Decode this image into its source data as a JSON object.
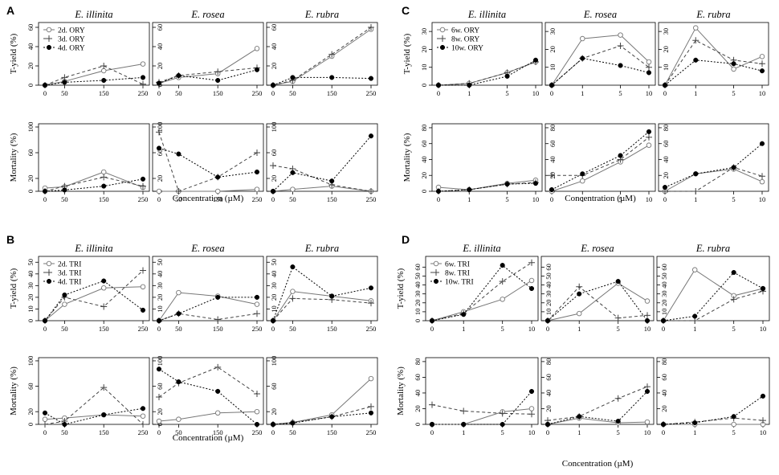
{
  "chart_data": [
    {
      "panel": "A",
      "treatment": "ORY",
      "type": "line",
      "xlabel": "Concentration (µM)",
      "x": [
        0,
        50,
        150,
        250
      ],
      "x_tick_labels": [
        "0",
        "50",
        "150",
        "250"
      ],
      "legend": [
        "2d. ORY",
        "3d. ORY",
        "4d. ORY"
      ],
      "species": [
        "E. illinita",
        "E. rosea",
        "E. rubra"
      ],
      "rows": [
        {
          "ylabel": "T-yield (%)",
          "ylim": [
            0,
            65
          ],
          "yticks": [
            0,
            20,
            40,
            60
          ],
          "data": [
            [
              [
                0,
                4,
                15,
                22
              ],
              [
                0,
                8,
                20,
                1
              ],
              [
                0,
                3,
                5,
                8
              ]
            ],
            [
              [
                2,
                8,
                12,
                38
              ],
              [
                3,
                10,
                14,
                18
              ],
              [
                2,
                10,
                5,
                16
              ]
            ],
            [
              [
                0,
                4,
                30,
                58
              ],
              [
                0,
                5,
                32,
                60
              ],
              [
                0,
                8,
                8,
                7
              ]
            ]
          ]
        },
        {
          "ylabel": "Mortality (%)",
          "ylim": [
            0,
            105
          ],
          "yticks": [
            0,
            20,
            60,
            100
          ],
          "data": [
            [
              [
                5,
                7,
                30,
                6
              ],
              [
                0,
                8,
                22,
                8
              ],
              [
                0,
                2,
                8,
                19
              ]
            ],
            [
              [
                0,
                0,
                0,
                3
              ],
              [
                92,
                0,
                22,
                60
              ],
              [
                67,
                58,
                22,
                30
              ]
            ],
            [
              [
                0,
                3,
                8,
                0
              ],
              [
                40,
                35,
                10,
                0
              ],
              [
                0,
                29,
                16,
                86
              ]
            ]
          ]
        }
      ]
    },
    {
      "panel": "B",
      "treatment": "TRI",
      "type": "line",
      "xlabel": "Concentration (µM)",
      "x": [
        0,
        50,
        150,
        250
      ],
      "x_tick_labels": [
        "0",
        "50",
        "150",
        "250"
      ],
      "legend": [
        "2d. TRI",
        "3d. TRI",
        "4d. TRI"
      ],
      "species": [
        "E. illinita",
        "E. rosea",
        "E. rubra"
      ],
      "rows": [
        {
          "ylabel": "T-yield (%)",
          "ylim": [
            0,
            55
          ],
          "yticks": [
            0,
            10,
            20,
            30,
            40,
            50
          ],
          "data": [
            [
              [
                0,
                14,
                28,
                29
              ],
              [
                0,
                20,
                12,
                43
              ],
              [
                0,
                22,
                34,
                9
              ]
            ],
            [
              [
                0,
                24,
                21,
                14
              ],
              [
                0,
                6,
                1,
                6
              ],
              [
                0,
                6,
                20,
                20
              ]
            ],
            [
              [
                0,
                25,
                21,
                17
              ],
              [
                0,
                19,
                18,
                15
              ],
              [
                0,
                46,
                21,
                28
              ]
            ]
          ]
        },
        {
          "ylabel": "Mortality (%)",
          "ylim": [
            0,
            105
          ],
          "yticks": [
            0,
            20,
            60,
            100
          ],
          "data": [
            [
              [
                8,
                10,
                15,
                13
              ],
              [
                0,
                5,
                58,
                0
              ],
              [
                18,
                0,
                15,
                25
              ]
            ],
            [
              [
                5,
                8,
                18,
                20
              ],
              [
                43,
                65,
                90,
                48
              ],
              [
                87,
                67,
                52,
                0
              ]
            ],
            [
              [
                0,
                3,
                15,
                72
              ],
              [
                0,
                3,
                12,
                28
              ],
              [
                0,
                2,
                12,
                18
              ]
            ]
          ]
        }
      ]
    },
    {
      "panel": "C",
      "treatment": "ORY",
      "type": "line",
      "xlabel": "Concentration (µM)",
      "x": [
        0,
        1,
        5,
        10
      ],
      "x_tick_labels": [
        "0",
        "1",
        "5",
        "10"
      ],
      "legend": [
        "6w. ORY",
        "8w. ORY",
        "10w. ORY"
      ],
      "species": [
        "E. illinita",
        "E. rosea",
        "E. rubra"
      ],
      "rows": [
        {
          "ylabel": "T-yield (%)",
          "ylim": [
            0,
            35
          ],
          "yticks": [
            0,
            10,
            20,
            30
          ],
          "data": [
            [
              [
                0,
                1,
                7,
                13
              ],
              [
                0,
                1,
                7,
                13
              ],
              [
                0,
                0,
                5,
                14
              ]
            ],
            [
              [
                0,
                26,
                28,
                13
              ],
              [
                0,
                15,
                22,
                10
              ],
              [
                0,
                15,
                11,
                7
              ]
            ],
            [
              [
                0,
                32,
                9,
                16
              ],
              [
                0,
                25,
                14,
                12
              ],
              [
                0,
                14,
                12,
                8
              ]
            ]
          ]
        },
        {
          "ylabel": "Mortality (%)",
          "ylim": [
            0,
            85
          ],
          "yticks": [
            0,
            20,
            40,
            60,
            80
          ],
          "data": [
            [
              [
                5,
                2,
                10,
                14
              ],
              [
                0,
                2,
                9,
                11
              ],
              [
                0,
                2,
                9,
                10
              ]
            ],
            [
              [
                0,
                13,
                37,
                58
              ],
              [
                20,
                20,
                40,
                68
              ],
              [
                2,
                22,
                45,
                75
              ]
            ],
            [
              [
                0,
                22,
                28,
                12
              ],
              [
                0,
                0,
                30,
                19
              ],
              [
                5,
                22,
                30,
                60
              ]
            ]
          ]
        }
      ]
    },
    {
      "panel": "D",
      "treatment": "TRI",
      "type": "line",
      "xlabel": "Concentration (µM)",
      "x": [
        0,
        1,
        5,
        10
      ],
      "x_tick_labels": [
        "0",
        "1",
        "5",
        "10"
      ],
      "legend": [
        "6w. TRI",
        "8w. TRI",
        "10w. TRI"
      ],
      "species": [
        "E. illinita",
        "E. rosea",
        "E. rubra"
      ],
      "rows": [
        {
          "ylabel": "T-yield (%)",
          "ylim": [
            0,
            72
          ],
          "yticks": [
            0,
            10,
            20,
            30,
            40,
            50,
            60
          ],
          "data": [
            [
              [
                0,
                10,
                24,
                45
              ],
              [
                0,
                8,
                44,
                65
              ],
              [
                0,
                7,
                62,
                36
              ]
            ],
            [
              [
                0,
                8,
                42,
                22
              ],
              [
                0,
                38,
                3,
                6
              ],
              [
                0,
                30,
                44,
                0
              ]
            ],
            [
              [
                0,
                57,
                28,
                36
              ],
              [
                0,
                0,
                24,
                33
              ],
              [
                0,
                5,
                54,
                36
              ]
            ]
          ]
        },
        {
          "ylabel": "Mortality (%)",
          "ylim": [
            0,
            85
          ],
          "yticks": [
            0,
            20,
            40,
            60,
            80
          ],
          "data": [
            [
              [
                0,
                0,
                16,
                20
              ],
              [
                25,
                17,
                14,
                13
              ],
              [
                0,
                0,
                0,
                42
              ]
            ],
            [
              [
                0,
                8,
                2,
                3
              ],
              [
                5,
                10,
                33,
                48
              ],
              [
                0,
                10,
                4,
                42
              ]
            ],
            [
              [
                0,
                0,
                0,
                0
              ],
              [
                0,
                3,
                8,
                5
              ],
              [
                0,
                2,
                10,
                36
              ]
            ]
          ]
        }
      ]
    }
  ]
}
